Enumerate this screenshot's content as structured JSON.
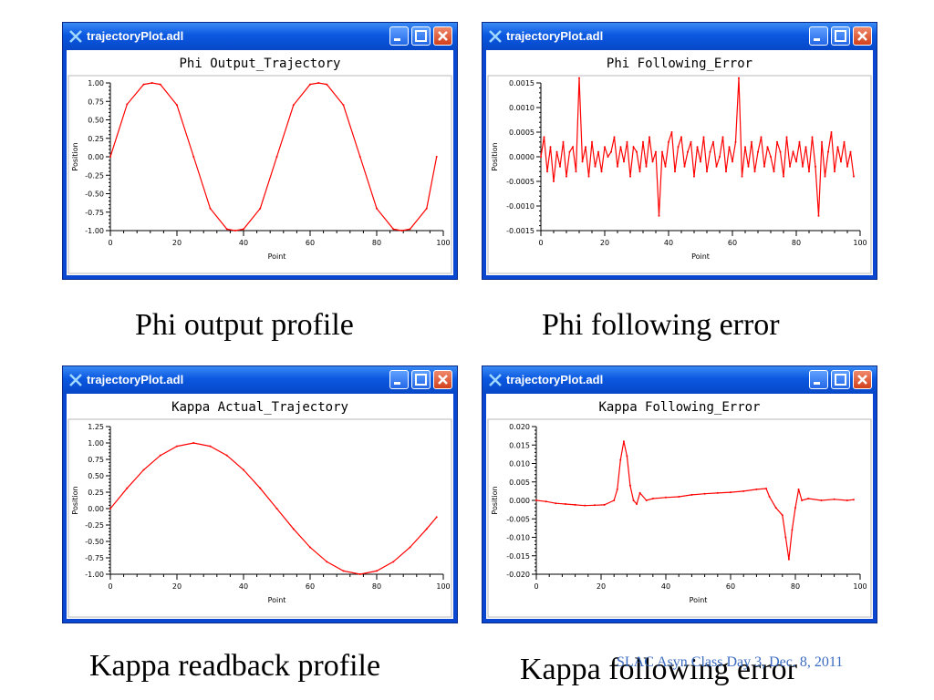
{
  "windows": [
    {
      "title": "trajectoryPlot.adl",
      "plot_title": "Phi Output_Trajectory"
    },
    {
      "title": "trajectoryPlot.adl",
      "plot_title": "Phi Following_Error"
    },
    {
      "title": "trajectoryPlot.adl",
      "plot_title": "Kappa Actual_Trajectory"
    },
    {
      "title": "trajectoryPlot.adl",
      "plot_title": "Kappa Following_Error"
    }
  ],
  "captions": [
    "Phi output profile",
    "Phi following error",
    "Kappa readback profile",
    "Kappa following error"
  ],
  "footer": "SLAC Asyn Class Day 3, Dec. 8, 2011",
  "colors": {
    "trace": "#ff0000",
    "titlebar": "#0a58e0",
    "caption_footer": "#3b6cc1"
  },
  "chart_data": [
    {
      "type": "line",
      "title": "Phi Output_Trajectory",
      "xlabel": "Point",
      "ylabel": "Position",
      "xlim": [
        0,
        100
      ],
      "ylim": [
        -1,
        1
      ],
      "xticks": [
        "0",
        "20",
        "40",
        "60",
        "80",
        "100"
      ],
      "yticks": [
        "-1.00",
        "-0.75",
        "-0.50",
        "-0.25",
        "0.00",
        "0.25",
        "0.50",
        "0.75",
        "1.00"
      ],
      "series": [
        {
          "x": [
            0,
            5,
            10,
            12.5,
            15,
            20,
            25,
            30,
            35,
            37.5,
            40,
            45,
            50,
            55,
            60,
            62.5,
            65,
            70,
            75,
            80,
            85,
            87.5,
            90,
            95,
            98
          ],
          "y": [
            0,
            0.71,
            0.98,
            1.0,
            0.98,
            0.7,
            0,
            -0.7,
            -0.98,
            -1.0,
            -0.98,
            -0.7,
            0,
            0.7,
            0.98,
            1.0,
            0.98,
            0.7,
            0,
            -0.7,
            -0.98,
            -1.0,
            -0.98,
            -0.7,
            0.0
          ]
        }
      ]
    },
    {
      "type": "line",
      "title": "Phi Following_Error",
      "xlabel": "Point",
      "ylabel": "Position",
      "xlim": [
        0,
        100
      ],
      "ylim": [
        -0.0015,
        0.0015
      ],
      "xticks": [
        "0",
        "20",
        "40",
        "60",
        "80",
        "100"
      ],
      "yticks": [
        "-0.0015",
        "-0.0010",
        "-0.0005",
        "0.0000",
        "0.0005",
        "0.0010",
        "0.0015"
      ],
      "series": [
        {
          "x": [
            0,
            1,
            2,
            3,
            4,
            5,
            6,
            7,
            8,
            9,
            10,
            11,
            12,
            13,
            14,
            15,
            16,
            17,
            18,
            19,
            20,
            21,
            22,
            23,
            24,
            25,
            26,
            27,
            28,
            29,
            30,
            31,
            32,
            33,
            34,
            35,
            36,
            37,
            38,
            39,
            40,
            41,
            42,
            43,
            44,
            45,
            46,
            47,
            48,
            49,
            50,
            51,
            52,
            53,
            54,
            55,
            56,
            57,
            58,
            59,
            60,
            61,
            62,
            63,
            64,
            65,
            66,
            67,
            68,
            69,
            70,
            71,
            72,
            73,
            74,
            75,
            76,
            77,
            78,
            79,
            80,
            81,
            82,
            83,
            84,
            85,
            86,
            87,
            88,
            89,
            90,
            91,
            92,
            93,
            94,
            95,
            96,
            97,
            98
          ],
          "y": [
            0.0,
            0.0004,
            -0.0003,
            0.0002,
            -0.0005,
            0.0001,
            -0.0002,
            0.0003,
            -0.0004,
            0.0001,
            0.0002,
            -0.0003,
            0.0016,
            -0.0001,
            0.0002,
            -0.0004,
            0.0003,
            -0.0002,
            0.0001,
            -0.0003,
            0.0002,
            0.0,
            0.0001,
            0.0004,
            -0.0002,
            0.0002,
            -0.0001,
            0.0003,
            -0.0004,
            0.0002,
            0.0001,
            -0.0003,
            0.0003,
            -0.0002,
            0.0004,
            -0.0001,
            0.0001,
            -0.0012,
            0.0001,
            -0.0002,
            0.0003,
            0.0005,
            -0.0003,
            0.0002,
            0.0004,
            -0.0002,
            0.0001,
            0.0003,
            -0.0004,
            0.0002,
            -0.0001,
            0.0004,
            -0.0003,
            0.0001,
            0.0003,
            -0.0002,
            0.0,
            0.0004,
            -0.0003,
            0.0002,
            -0.0001,
            0.0003,
            0.0016,
            -0.0004,
            0.0002,
            -0.0002,
            0.0003,
            -0.0003,
            0.0001,
            0.0004,
            -0.0002,
            0.0002,
            0.0,
            -0.0003,
            0.0003,
            0.0001,
            -0.0004,
            0.0004,
            -0.0002,
            0.0001,
            -0.0001,
            0.0003,
            -0.0002,
            0.0002,
            -0.0003,
            0.0004,
            -0.0002,
            -0.0012,
            0.0003,
            -0.0004,
            0.0001,
            0.0005,
            -0.0003,
            0.0002,
            -0.0001,
            0.0003,
            -0.0002,
            0.0001,
            -0.0004
          ]
        }
      ]
    },
    {
      "type": "line",
      "title": "Kappa Actual_Trajectory",
      "xlabel": "Point",
      "ylabel": "Position",
      "xlim": [
        0,
        100
      ],
      "ylim": [
        -1,
        1.25
      ],
      "xticks": [
        "0",
        "20",
        "40",
        "60",
        "80",
        "100"
      ],
      "yticks": [
        "-1.00",
        "-0.75",
        "-0.50",
        "-0.25",
        "0.00",
        "0.25",
        "0.50",
        "0.75",
        "1.00",
        "1.25"
      ],
      "series": [
        {
          "x": [
            0,
            5,
            10,
            15,
            20,
            25,
            30,
            35,
            40,
            45,
            50,
            55,
            60,
            65,
            70,
            75,
            80,
            85,
            90,
            95,
            98
          ],
          "y": [
            0.0,
            0.31,
            0.59,
            0.81,
            0.95,
            1.0,
            0.95,
            0.81,
            0.59,
            0.31,
            0.0,
            -0.31,
            -0.59,
            -0.81,
            -0.95,
            -1.0,
            -0.95,
            -0.81,
            -0.59,
            -0.31,
            -0.13
          ]
        }
      ]
    },
    {
      "type": "line",
      "title": "Kappa Following_Error",
      "xlabel": "Point",
      "ylabel": "Position",
      "xlim": [
        0,
        100
      ],
      "ylim": [
        -0.02,
        0.02
      ],
      "xticks": [
        "0",
        "20",
        "40",
        "60",
        "80",
        "100"
      ],
      "yticks": [
        "-0.020",
        "-0.015",
        "-0.010",
        "-0.005",
        "0.000",
        "0.005",
        "0.010",
        "0.015",
        "0.020"
      ],
      "series": [
        {
          "x": [
            0,
            3,
            6,
            9,
            12,
            15,
            18,
            21,
            24,
            25,
            26,
            27,
            28,
            29,
            30,
            31,
            32,
            34,
            36,
            40,
            44,
            48,
            52,
            56,
            60,
            64,
            68,
            71,
            72,
            74,
            76,
            77,
            78,
            79,
            80,
            81,
            82,
            84,
            88,
            92,
            96,
            98
          ],
          "y": [
            0.0,
            -0.0003,
            -0.0008,
            -0.001,
            -0.0012,
            -0.0014,
            -0.0013,
            -0.0012,
            0.0,
            0.003,
            0.011,
            0.016,
            0.012,
            0.004,
            0.0,
            -0.001,
            0.002,
            0.0,
            0.0005,
            0.0008,
            0.001,
            0.0015,
            0.0018,
            0.002,
            0.0022,
            0.0025,
            0.003,
            0.0032,
            0.001,
            -0.002,
            -0.004,
            -0.01,
            -0.016,
            -0.008,
            -0.002,
            0.003,
            0.0,
            0.0005,
            0.0,
            0.0003,
            0.0,
            0.0002
          ]
        }
      ]
    }
  ]
}
